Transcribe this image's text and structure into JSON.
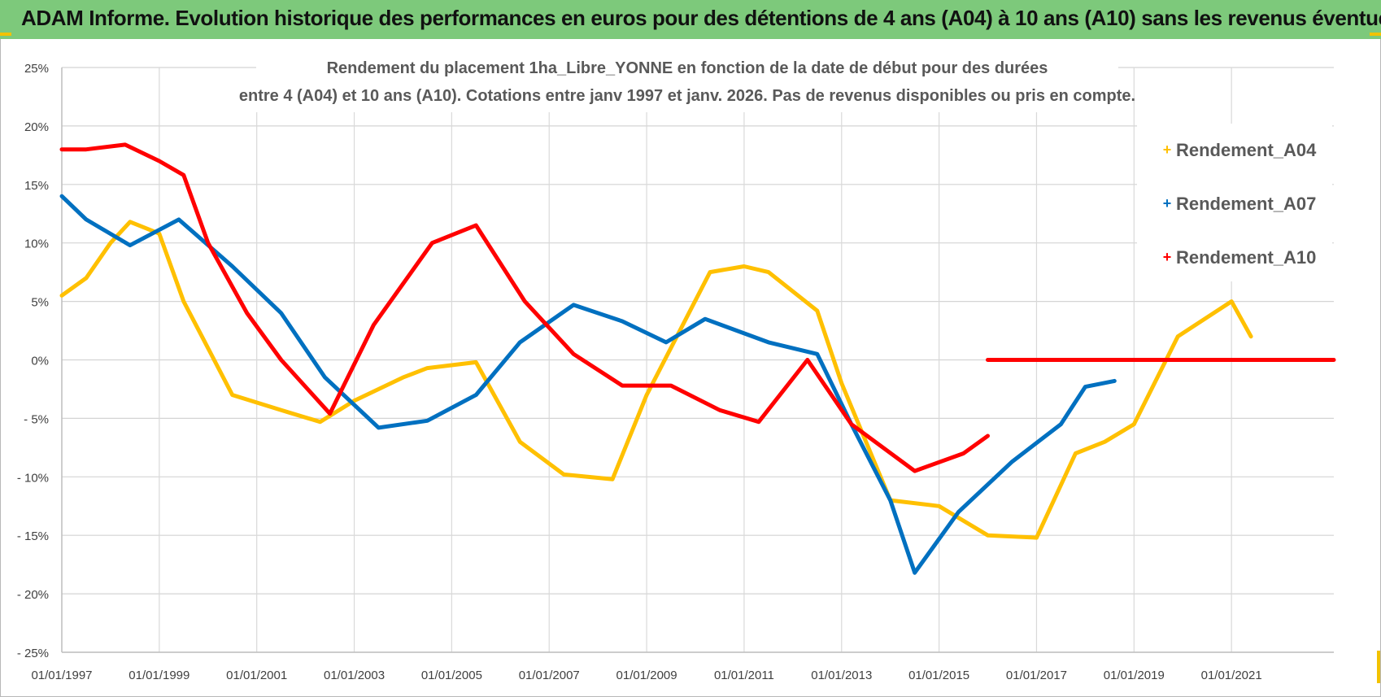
{
  "banner": {
    "title": "ADAM Informe. Evolution historique des performances en euros pour des détentions de 4 ans (A04) à 10 ans (A10) sans les revenus éventuels"
  },
  "colors": {
    "banner_bg": "#7dc97b",
    "A04": "#ffc000",
    "A07": "#0070c0",
    "A10": "#ff0000",
    "corner_accent": "#f2c200"
  },
  "chart_data": {
    "type": "line",
    "title_lines": [
      "Rendement du placement 1ha_Libre_YONNE en fonction de la date de début pour des durées",
      "entre 4 (A04) et 10 ans (A10).  Cotations entre janv 1997 et janv. 2026. Pas de revenus disponibles ou pris en compte."
    ],
    "xlabel": "",
    "ylabel": "",
    "x_tick_labels": [
      "01/01/1997",
      "01/01/1999",
      "01/01/2001",
      "01/01/2003",
      "01/01/2005",
      "01/01/2007",
      "01/01/2009",
      "01/01/2011",
      "01/01/2013",
      "01/01/2015",
      "01/01/2017",
      "01/01/2019",
      "01/01/2021"
    ],
    "y_tick_labels": [
      "25%",
      "20%",
      "15%",
      "10%",
      "5%",
      "0%",
      "- 5%",
      "- 10%",
      "- 15%",
      "- 20%",
      "- 25%"
    ],
    "xlim": [
      1997.0,
      2023.1
    ],
    "ylim": [
      -25,
      25
    ],
    "y_unit": "%",
    "grid": true,
    "legend_position": "top-right",
    "series": [
      {
        "name": "Rendement_A04",
        "color": "#ffc000",
        "points": [
          [
            1997.0,
            5.5
          ],
          [
            1997.5,
            7.0
          ],
          [
            1998.0,
            10.0
          ],
          [
            1998.4,
            11.8
          ],
          [
            1999.0,
            10.8
          ],
          [
            1999.5,
            5.0
          ],
          [
            2000.0,
            1.0
          ],
          [
            2000.5,
            -3.0
          ],
          [
            2001.5,
            -4.3
          ],
          [
            2002.3,
            -5.3
          ],
          [
            2003.0,
            -3.5
          ],
          [
            2004.0,
            -1.5
          ],
          [
            2004.5,
            -0.7
          ],
          [
            2005.5,
            -0.2
          ],
          [
            2006.4,
            -7.0
          ],
          [
            2007.3,
            -9.8
          ],
          [
            2008.3,
            -10.2
          ],
          [
            2009.0,
            -3.0
          ],
          [
            2010.3,
            7.5
          ],
          [
            2011.0,
            8.0
          ],
          [
            2011.5,
            7.5
          ],
          [
            2012.5,
            4.2
          ],
          [
            2013.0,
            -2.0
          ],
          [
            2014.0,
            -12.0
          ],
          [
            2015.0,
            -12.5
          ],
          [
            2016.0,
            -15.0
          ],
          [
            2017.0,
            -15.2
          ],
          [
            2017.8,
            -8.0
          ],
          [
            2018.4,
            -7.0
          ],
          [
            2019.0,
            -5.5
          ],
          [
            2019.9,
            2.0
          ],
          [
            2021.0,
            5.0
          ],
          [
            2021.4,
            2.0
          ]
        ]
      },
      {
        "name": "Rendement_A07",
        "color": "#0070c0",
        "points": [
          [
            1997.0,
            14.0
          ],
          [
            1997.5,
            12.0
          ],
          [
            1998.4,
            9.8
          ],
          [
            1999.4,
            12.0
          ],
          [
            2000.5,
            8.0
          ],
          [
            2001.5,
            4.0
          ],
          [
            2002.4,
            -1.5
          ],
          [
            2003.5,
            -5.8
          ],
          [
            2004.5,
            -5.2
          ],
          [
            2005.5,
            -3.0
          ],
          [
            2006.4,
            1.5
          ],
          [
            2007.5,
            4.7
          ],
          [
            2008.5,
            3.3
          ],
          [
            2009.4,
            1.5
          ],
          [
            2010.2,
            3.5
          ],
          [
            2011.5,
            1.5
          ],
          [
            2012.5,
            0.5
          ],
          [
            2013.2,
            -5.5
          ],
          [
            2014.0,
            -12.0
          ],
          [
            2014.5,
            -18.2
          ],
          [
            2015.4,
            -13.0
          ],
          [
            2016.5,
            -8.7
          ],
          [
            2017.5,
            -5.5
          ],
          [
            2018.0,
            -2.3
          ],
          [
            2018.6,
            -1.8
          ]
        ]
      },
      {
        "name": "Rendement_A10",
        "color": "#ff0000",
        "points": [
          [
            1997.0,
            18.0
          ],
          [
            1997.5,
            18.0
          ],
          [
            1998.3,
            18.4
          ],
          [
            1999.0,
            17.0
          ],
          [
            1999.5,
            15.8
          ],
          [
            2000.0,
            10.0
          ],
          [
            2000.8,
            4.0
          ],
          [
            2001.5,
            0.0
          ],
          [
            2002.5,
            -4.6
          ],
          [
            2003.4,
            3.0
          ],
          [
            2004.6,
            10.0
          ],
          [
            2005.5,
            11.5
          ],
          [
            2006.5,
            5.0
          ],
          [
            2007.5,
            0.5
          ],
          [
            2008.5,
            -2.2
          ],
          [
            2009.5,
            -2.2
          ],
          [
            2010.5,
            -4.3
          ],
          [
            2011.3,
            -5.3
          ],
          [
            2012.3,
            0.0
          ],
          [
            2013.2,
            -5.5
          ],
          [
            2014.5,
            -9.5
          ],
          [
            2015.5,
            -8.0
          ],
          [
            2016.0,
            -6.5
          ]
        ]
      },
      {
        "name": "Rendement_A10",
        "color": "#ff0000",
        "points": [
          [
            2016.0,
            0.0
          ],
          [
            2023.1,
            0.0
          ]
        ]
      }
    ]
  }
}
